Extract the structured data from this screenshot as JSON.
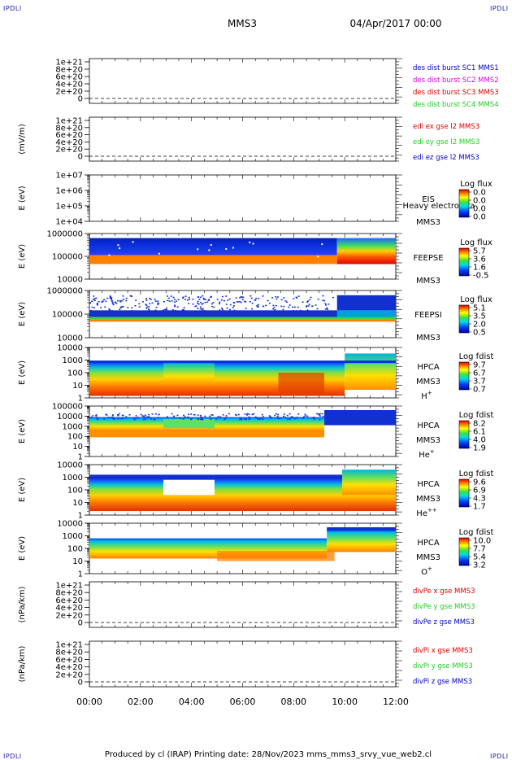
{
  "corners": {
    "tl": "IPDLI",
    "tr": "IPDLI",
    "bl": "IPDLI",
    "br": "IPDLI"
  },
  "header": {
    "title": "MMS3",
    "date": "04/Apr/2017 00:00"
  },
  "footer": {
    "text": "Produced by cl (IRAP)   Printing date: 28/Nov/2023   mms_mms3_srvy_vue_web2.cl"
  },
  "colors": {
    "red": "#e00000",
    "magenta": "#e000e0",
    "green": "#22cc22",
    "blue": "#0000cc"
  },
  "chart_data": {
    "type": "spectrogram",
    "time_axis": {
      "ticks": [
        "00:00",
        "02:00",
        "04:00",
        "06:00",
        "08:00",
        "10:00",
        "12:00"
      ],
      "range_hours": [
        0,
        12
      ]
    },
    "panels": [
      {
        "id": "p1",
        "ylabel": "",
        "ticks": [
          "1e+21",
          "8e+20",
          "6e+20",
          "4e+20",
          "2e+20",
          "0"
        ],
        "dashed_zero": true,
        "legend": [
          {
            "text": "des dist burst SC1 MMS1",
            "color": "#0000cc"
          },
          {
            "text": "des dist burst SC2 MMS2",
            "color": "#e000e0"
          },
          {
            "text": "des dist burst SC3 MMS3",
            "color": "#e00000"
          },
          {
            "text": "des dist burst SC4 MMS4",
            "color": "#22cc22"
          }
        ]
      },
      {
        "id": "p2",
        "ylabel": "(mV/m)",
        "ticks": [
          "1e+21",
          "8e+20",
          "6e+20",
          "4e+20",
          "2e+20",
          "0"
        ],
        "dashed_zero": true,
        "legend": [
          {
            "text": "edi ex gse l2 MMS3",
            "color": "#e00000"
          },
          {
            "text": "edi ey gse l2 MMS3",
            "color": "#22cc22"
          },
          {
            "text": "edi ez gse l2 MMS3",
            "color": "#0000cc"
          }
        ]
      },
      {
        "id": "p3",
        "ylabel": "E (eV)",
        "ticks": [
          "1e+07",
          "1e+06",
          "1e+05",
          "1e+04"
        ],
        "labels": [
          "EIS",
          "Heavy electron ta",
          "MMS3"
        ],
        "cbar_title": "Log flux",
        "cbar_ticks": [
          "0.0",
          "0.0",
          "0.0",
          "0.0"
        ]
      },
      {
        "id": "p4",
        "ylabel": "E (eV)",
        "ticks": [
          "1000000",
          "100000",
          "10000"
        ],
        "labels": [
          "FEEPSE",
          "MMS3"
        ],
        "cbar_title": "Log flux",
        "cbar_ticks": [
          "5.7",
          "3.6",
          "1.6",
          "-0.5"
        ]
      },
      {
        "id": "p5",
        "ylabel": "E (eV)",
        "ticks": [
          "1000000",
          "100000",
          "10000"
        ],
        "labels": [
          "FEEPSI",
          "MMS3"
        ],
        "cbar_title": "Log flux",
        "cbar_ticks": [
          "5.1",
          "3.5",
          "2.0",
          "0.5"
        ]
      },
      {
        "id": "p6",
        "ylabel": "E (eV)",
        "ticks": [
          "10000",
          "1000",
          "100",
          "10",
          "1"
        ],
        "labels": [
          "HPCA",
          "MMS3",
          "H"
        ],
        "species_sup": "+",
        "cbar_title": "Log fdist",
        "cbar_ticks": [
          "9.7",
          "6.7",
          "3.7",
          "0.7"
        ]
      },
      {
        "id": "p7",
        "ylabel": "E (eV)",
        "ticks": [
          "100000",
          "10000",
          "1000",
          "100",
          "10",
          "1"
        ],
        "labels": [
          "HPCA",
          "MMS3",
          "He"
        ],
        "species_sup": "+",
        "cbar_title": "Log fdist",
        "cbar_ticks": [
          "8.2",
          "6.1",
          "4.0",
          "1.9"
        ]
      },
      {
        "id": "p8",
        "ylabel": "E (eV)",
        "ticks": [
          "10000",
          "1000",
          "100",
          "10",
          "1"
        ],
        "labels": [
          "HPCA",
          "MMS3",
          "He"
        ],
        "species_sup": "++",
        "cbar_title": "Log fdist",
        "cbar_ticks": [
          "9.6",
          "6.9",
          "4.3",
          "1.7"
        ]
      },
      {
        "id": "p9",
        "ylabel": "E (eV)",
        "ticks": [
          "10000",
          "1000",
          "100",
          "10",
          "1"
        ],
        "labels": [
          "HPCA",
          "MMS3",
          "O"
        ],
        "species_sup": "+",
        "cbar_title": "Log fdist",
        "cbar_ticks": [
          "10.0",
          "7.7",
          "5.4",
          "3.2"
        ]
      },
      {
        "id": "p10",
        "ylabel": "(nPa/km)",
        "ticks": [
          "1e+21",
          "8e+20",
          "6e+20",
          "4e+20",
          "2e+20",
          "0"
        ],
        "dashed_zero": true,
        "legend": [
          {
            "text": "divPe x gse MMS3",
            "color": "#e00000"
          },
          {
            "text": "divPe y gse MMS3",
            "color": "#22cc22"
          },
          {
            "text": "divPe z gse MMS3",
            "color": "#0000cc"
          }
        ]
      },
      {
        "id": "p11",
        "ylabel": "(nPa/km)",
        "ticks": [
          "1e+21",
          "8e+20",
          "6e+20",
          "4e+20",
          "2e+20",
          "0"
        ],
        "dashed_zero": true,
        "legend": [
          {
            "text": "divPi x gse MMS3",
            "color": "#e00000"
          },
          {
            "text": "divPi y gse MMS3",
            "color": "#22cc22"
          },
          {
            "text": "divPi z gse MMS3",
            "color": "#0000cc"
          }
        ]
      }
    ]
  }
}
